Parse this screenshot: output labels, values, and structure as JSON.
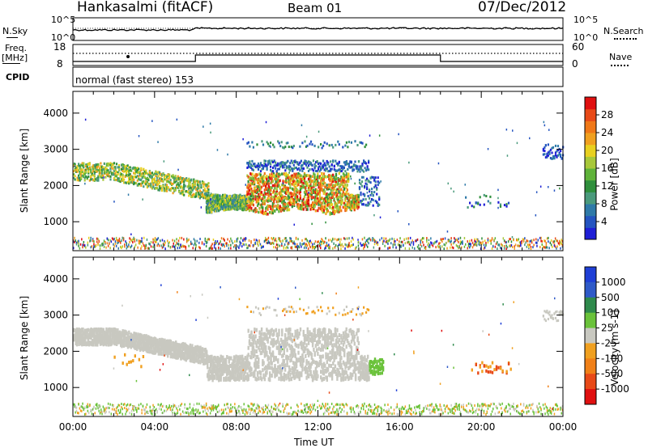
{
  "header": {
    "title": "Hankasalmi (fitACF)",
    "beam": "Beam 01",
    "date": "07/Dec/2012"
  },
  "top_panels": {
    "nsky_label": "N.Sky",
    "nsearch_label": "N.Search",
    "nsky_tick_hi": "10^5",
    "nsky_tick_lo": "10^0",
    "freq_label_1": "Freq.",
    "freq_label_2": "[MHz]",
    "freq_tick_hi": "18",
    "freq_tick_lo": "8",
    "nave_label": "Nave",
    "nave_tick_hi": "60",
    "nave_tick_lo": "0",
    "cpid_label": "CPID",
    "cpid_text": "normal (fast stereo) 153"
  },
  "time_axis": {
    "label": "Time UT",
    "ticks": [
      "00:00",
      "04:00",
      "08:00",
      "12:00",
      "16:00",
      "20:00",
      "00:00"
    ]
  },
  "colors": {
    "velocity_grey": "#c8c8c0"
  },
  "chart_data": [
    {
      "type": "heatmap",
      "name": "power",
      "ylabel": "Slant Range [km]",
      "xlabel": "",
      "x_range_hours": [
        0,
        24
      ],
      "ylim": [
        200,
        4600
      ],
      "yticks": [
        "1000",
        "2000",
        "3000",
        "4000"
      ],
      "colorbar_label": "Power [dB]",
      "colorbar_ticks": [
        "4",
        "8",
        "12",
        "16",
        "20",
        "24",
        "28"
      ],
      "colorbar_colors": [
        "#1f1fd6",
        "#2454c0",
        "#2f7aa8",
        "#4a9a7c",
        "#2f8f3c",
        "#5fb33a",
        "#a8c83a",
        "#e8d020",
        "#f0a020",
        "#f07818",
        "#e84a18",
        "#e01010"
      ],
      "regions": [
        {
          "t": [
            0.0,
            6.5
          ],
          "range": [
            1800,
            2600
          ],
          "level": "mid",
          "desc_ref": "band"
        },
        {
          "t": [
            6.5,
            14.0
          ],
          "range": [
            1100,
            2500
          ],
          "level": "high"
        },
        {
          "t": [
            8.5,
            14.5
          ],
          "range": [
            2400,
            3200
          ],
          "level": "low"
        },
        {
          "t": [
            14.0,
            15.0
          ],
          "range": [
            1300,
            2300
          ],
          "level": "low"
        },
        {
          "t": [
            19.0,
            21.5
          ],
          "range": [
            1300,
            1700
          ],
          "level": "low"
        },
        {
          "t": [
            23.0,
            24.0
          ],
          "range": [
            2700,
            3100
          ],
          "level": "low"
        },
        {
          "t": [
            0.0,
            24.0
          ],
          "range": [
            200,
            500
          ],
          "level": "ground"
        }
      ]
    },
    {
      "type": "heatmap",
      "name": "velocity",
      "ylabel": "Slant Range [km]",
      "xlabel": "Time UT",
      "x_range_hours": [
        0,
        24
      ],
      "ylim": [
        200,
        4600
      ],
      "yticks": [
        "1000",
        "2000",
        "3000",
        "4000"
      ],
      "colorbar_label": "Velocity [m s-1]",
      "colorbar_ticks": [
        "1000",
        "500",
        "100",
        "25",
        "-25",
        "-100",
        "-500",
        "-1000"
      ],
      "colorbar_colors": [
        "#1f3fd6",
        "#2f5ac8",
        "#2f8a4c",
        "#6ac23a",
        "#c8c8c0",
        "#f0a020",
        "#f08018",
        "#e84a18",
        "#e01010"
      ],
      "regions": [
        {
          "t": [
            0.0,
            14.5
          ],
          "range": [
            1100,
            2600
          ],
          "level": "ground-scatter"
        },
        {
          "t": [
            14.5,
            15.2
          ],
          "range": [
            1300,
            1800
          ],
          "level": "positive"
        },
        {
          "t": [
            19.5,
            21.5
          ],
          "range": [
            1300,
            1700
          ],
          "level": "negative"
        },
        {
          "t": [
            2.0,
            3.5
          ],
          "range": [
            1400,
            2000
          ],
          "level": "negative"
        }
      ]
    }
  ]
}
